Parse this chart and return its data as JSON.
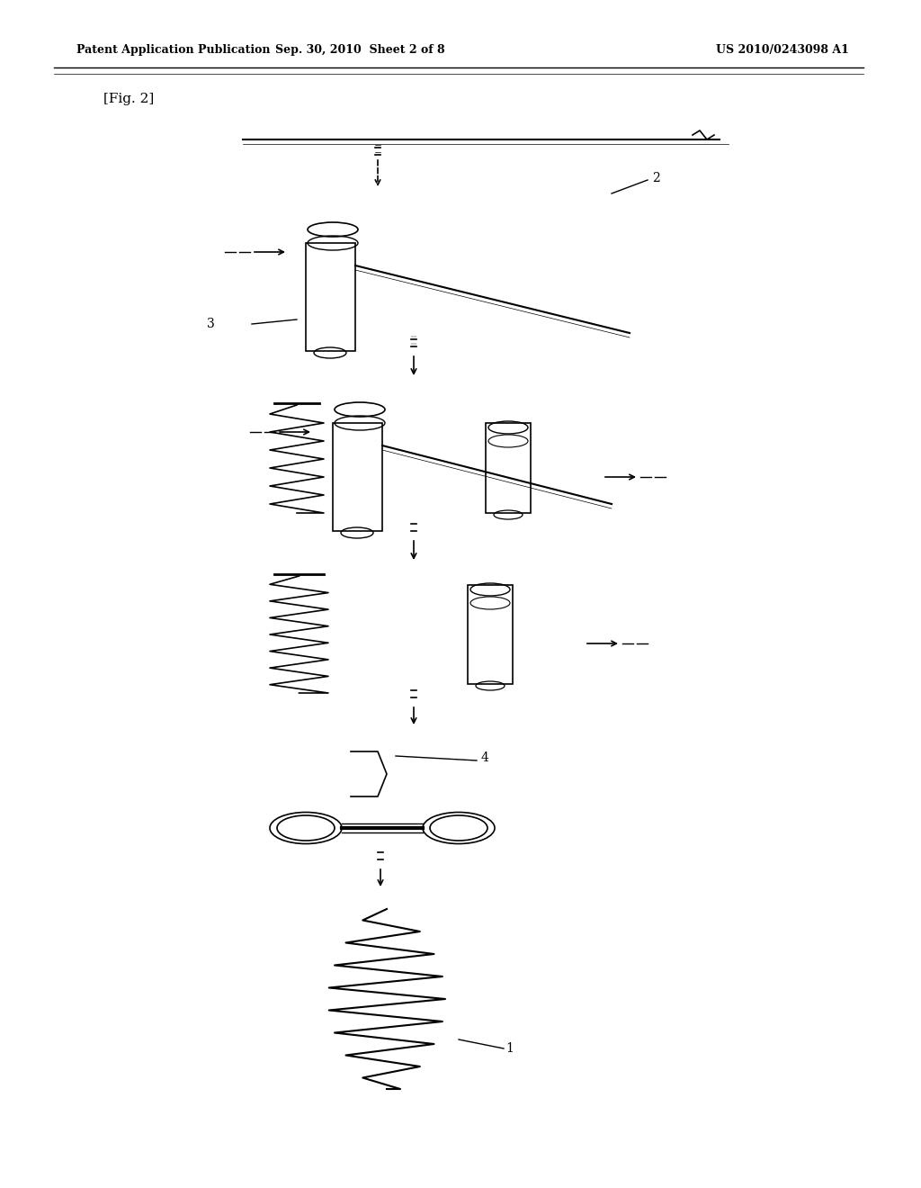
{
  "title": "",
  "header_left": "Patent Application Publication",
  "header_mid": "Sep. 30, 2010  Sheet 2 of 8",
  "header_right": "US 2010/0243098 A1",
  "fig_label": "[Fig. 2]",
  "bg_color": "#ffffff",
  "line_color": "#000000",
  "label_2": "2",
  "label_3": "3",
  "label_4": "4",
  "label_1": "1"
}
